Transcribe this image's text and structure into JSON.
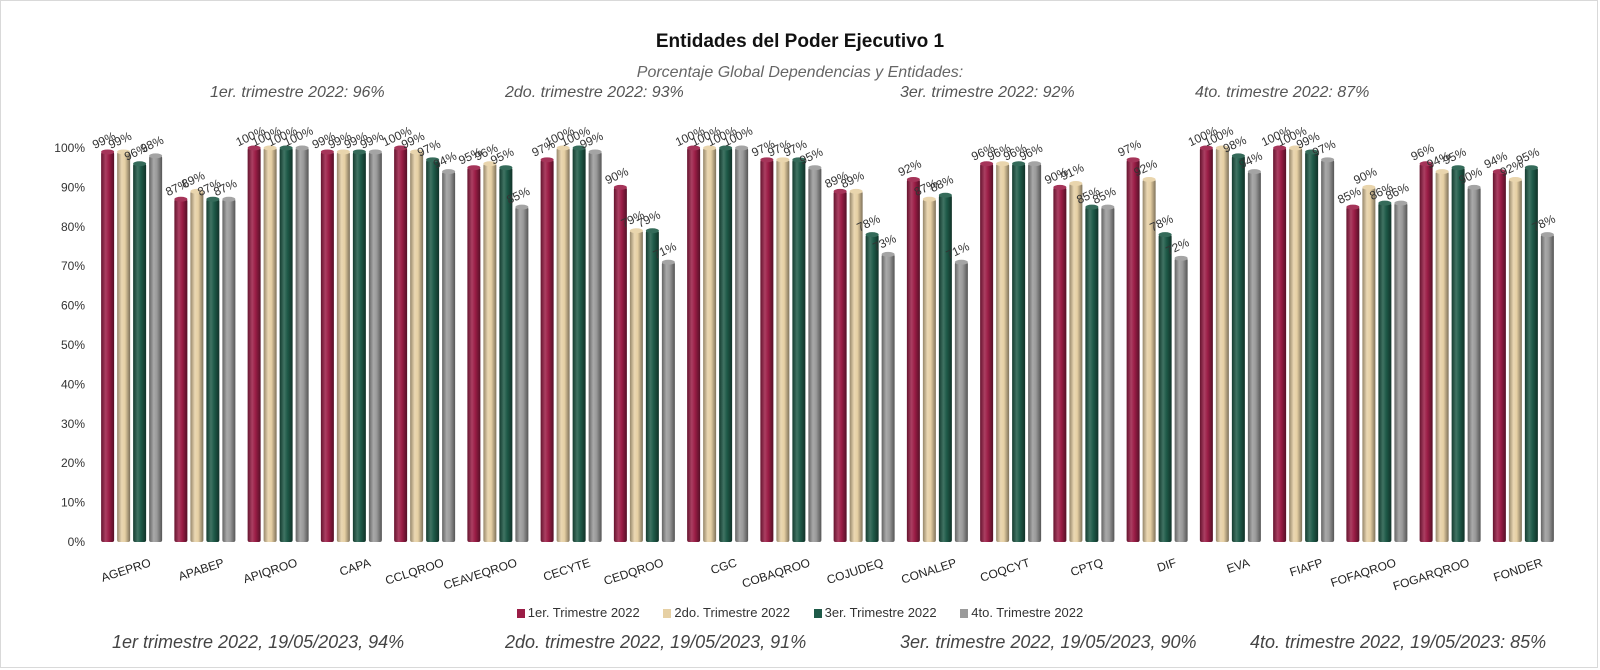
{
  "chart_data": {
    "type": "bar",
    "title": "Entidades del Poder Ejecutivo 1",
    "subtitle": "Porcentaje Global  Dependencias y Entidades:",
    "quarter_notes": [
      "1er. trimestre 2022: 96%",
      "2do. trimestre 2022: 93%",
      "3er. trimestre 2022: 92%",
      "4to. trimestre 2022: 87%"
    ],
    "footer_notes": [
      "1er trimestre  2022,  19/05/2023, 94%",
      "2do. trimestre 2022, 19/05/2023, 91%",
      "3er. trimestre 2022, 19/05/2023, 90%",
      "4to. trimestre 2022, 19/05/2023: 85%"
    ],
    "categories": [
      "AGEPRO",
      "APABEP",
      "APIQROO",
      "CAPA",
      "CCLQROO",
      "CEAVEQROO",
      "CECYTE",
      "CEDQROO",
      "CGC",
      "COBAQROO",
      "COJUDEQ",
      "CONALEP",
      "COQCYT",
      "CPTQ",
      "DIF",
      "EVA",
      "FIAFP",
      "FOFAQROO",
      "FOGARQROO",
      "FONDER"
    ],
    "series": [
      {
        "name": "1er. Trimestre 2022",
        "color": "#9b1d46",
        "values": [
          99,
          87,
          100,
          99,
          100,
          95,
          97,
          90,
          100,
          97,
          89,
          92,
          96,
          90,
          97,
          100,
          100,
          85,
          96,
          94
        ]
      },
      {
        "name": "2do. Trimestre 2022",
        "color": "#e6d0a4",
        "values": [
          99,
          89,
          100,
          99,
          99,
          96,
          100,
          79,
          100,
          97,
          89,
          87,
          96,
          91,
          92,
          100,
          100,
          90,
          94,
          92
        ]
      },
      {
        "name": "3er. Trimestre 2022",
        "color": "#1e5a48",
        "values": [
          96,
          87,
          100,
          99,
          97,
          95,
          100,
          79,
          100,
          97,
          78,
          88,
          96,
          85,
          78,
          98,
          99,
          86,
          95,
          95
        ]
      },
      {
        "name": "4to. Trimestre 2022",
        "color": "#9a9a9a",
        "values": [
          98,
          87,
          100,
          99,
          94,
          85,
          99,
          71,
          100,
          95,
          73,
          71,
          96,
          85,
          72,
          94,
          97,
          86,
          90,
          78
        ]
      }
    ],
    "ylim": [
      0,
      100
    ],
    "y_ticks": [
      "0%",
      "10%",
      "20%",
      "30%",
      "40%",
      "50%",
      "60%",
      "70%",
      "80%",
      "90%",
      "100%"
    ],
    "value_suffix": "%",
    "grid": false,
    "legend_position": "bottom"
  }
}
